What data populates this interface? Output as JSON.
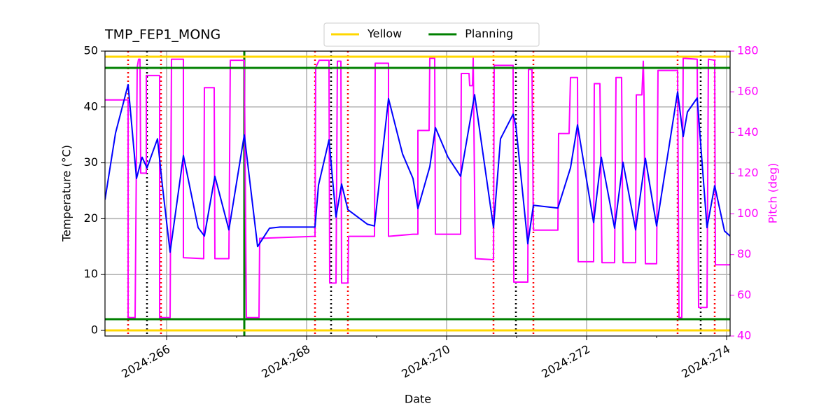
{
  "chart_data": {
    "type": "line",
    "title": "TMP_FEP1_MONG",
    "xlabel": "Date",
    "ylabel": "Temperature (°C)",
    "y2label": "Pitch (deg)",
    "y2color": "magenta",
    "xlim": [
      265.12,
      274.05
    ],
    "ylim": [
      -1,
      50
    ],
    "y2lim": [
      40,
      180
    ],
    "xticks": [
      {
        "value": 266,
        "label": "2024:266"
      },
      {
        "value": 268,
        "label": "2024:268"
      },
      {
        "value": 270,
        "label": "2024:270"
      },
      {
        "value": 272,
        "label": "2024:272"
      },
      {
        "value": 274,
        "label": "2024:274"
      }
    ],
    "xminorticks": [
      267,
      269,
      271,
      273
    ],
    "yticks": [
      0,
      10,
      20,
      30,
      40,
      50
    ],
    "y2ticks": [
      40,
      60,
      80,
      100,
      120,
      140,
      160,
      180
    ],
    "grid": true,
    "legend": "upper center",
    "hlines": [
      {
        "name": "Yellow",
        "color": "gold",
        "values": [
          49,
          0
        ]
      },
      {
        "name": "Planning",
        "color": "green",
        "values": [
          47,
          2
        ]
      }
    ],
    "vlines": [
      {
        "color": "red",
        "style": "dotted",
        "values": [
          265.45,
          265.92,
          268.12,
          268.59,
          270.67,
          271.24,
          273.3,
          273.83
        ]
      },
      {
        "color": "black",
        "style": "dotted",
        "values": [
          265.72,
          268.35,
          270.99,
          273.63
        ]
      },
      {
        "color": "green",
        "style": "solid",
        "values": [
          267.11
        ]
      }
    ],
    "series": [
      {
        "color": "blue",
        "axis": "y",
        "x": [
          265.12,
          265.27,
          265.45,
          265.57,
          265.65,
          265.72,
          265.87,
          265.94,
          266.05,
          266.24,
          266.45,
          266.54,
          266.69,
          266.89,
          267.11,
          267.3,
          267.47,
          267.62,
          268.12,
          268.17,
          268.32,
          268.42,
          268.5,
          268.59,
          268.87,
          268.97,
          269.17,
          269.37,
          269.52,
          269.59,
          269.76,
          269.84,
          270.02,
          270.2,
          270.4,
          270.67,
          270.77,
          270.95,
          270.99,
          271.16,
          271.24,
          271.59,
          271.77,
          271.87,
          272.1,
          272.21,
          272.4,
          272.52,
          272.7,
          272.84,
          273.0,
          273.3,
          273.38,
          273.44,
          273.58,
          273.72,
          273.83,
          273.97,
          274.05
        ],
        "values": [
          23.4,
          35.3,
          44.0,
          27.2,
          31.0,
          29.1,
          34.3,
          25.9,
          14.0,
          31.3,
          18.4,
          16.9,
          27.6,
          18.0,
          35.0,
          15.0,
          18.3,
          18.5,
          18.5,
          26.0,
          34.1,
          20.3,
          26.2,
          21.6,
          19.0,
          18.7,
          41.5,
          31.6,
          27.2,
          21.8,
          29.3,
          36.3,
          31.0,
          27.6,
          42.2,
          18.4,
          34.3,
          38.7,
          36.6,
          15.5,
          22.4,
          21.9,
          29.1,
          36.8,
          19.3,
          31.0,
          18.3,
          30.1,
          18.0,
          30.8,
          18.7,
          42.7,
          34.7,
          39.1,
          41.6,
          18.4,
          25.9,
          17.8,
          16.9
        ]
      },
      {
        "color": "magenta",
        "axis": "y2",
        "x": [
          265.12,
          265.45,
          265.45,
          265.55,
          265.58,
          265.6,
          265.62,
          265.63,
          265.71,
          265.71,
          265.9,
          265.9,
          266.05,
          266.07,
          266.24,
          266.24,
          266.53,
          266.54,
          266.68,
          266.69,
          266.89,
          266.91,
          267.11,
          267.14,
          267.32,
          267.33,
          268.12,
          268.13,
          268.18,
          268.32,
          268.33,
          268.42,
          268.44,
          268.49,
          268.5,
          268.59,
          268.6,
          268.97,
          268.98,
          269.17,
          269.17,
          269.52,
          269.59,
          269.59,
          269.75,
          269.76,
          269.83,
          269.84,
          270.2,
          270.21,
          270.32,
          270.33,
          270.37,
          270.38,
          270.41,
          270.67,
          270.68,
          270.95,
          270.96,
          271.16,
          271.17,
          271.22,
          271.24,
          271.59,
          271.6,
          271.75,
          271.77,
          271.87,
          271.88,
          272.1,
          272.11,
          272.19,
          272.22,
          272.4,
          272.42,
          272.5,
          272.52,
          272.7,
          272.71,
          272.79,
          272.81,
          272.82,
          272.84,
          273.0,
          273.02,
          273.3,
          273.32,
          273.36,
          273.38,
          273.58,
          273.6,
          273.72,
          273.74,
          273.83,
          273.84,
          274.05
        ],
        "values": [
          156,
          156,
          49,
          49,
          172,
          176,
          176,
          120,
          120,
          168,
          168,
          49,
          49,
          176,
          176,
          78.5,
          78,
          162,
          162,
          78,
          78,
          175.5,
          175.5,
          49,
          49,
          88,
          89,
          172,
          175.5,
          175.5,
          66,
          66,
          175,
          175,
          66,
          66,
          89,
          89,
          174,
          174,
          89,
          90,
          90,
          141,
          141,
          176.5,
          176.5,
          90,
          90,
          169,
          169,
          163,
          163,
          176.5,
          78,
          77.5,
          173,
          173,
          66.5,
          66.5,
          171,
          171,
          92,
          92,
          139.5,
          139.5,
          167,
          167,
          76.5,
          76.5,
          164,
          164,
          76,
          76,
          167,
          167,
          76,
          76,
          158.5,
          158.5,
          175,
          158.5,
          75.5,
          75.5,
          170.5,
          170.5,
          49,
          49,
          176.5,
          176,
          54,
          54,
          176,
          175.5,
          75,
          75
        ]
      }
    ]
  }
}
